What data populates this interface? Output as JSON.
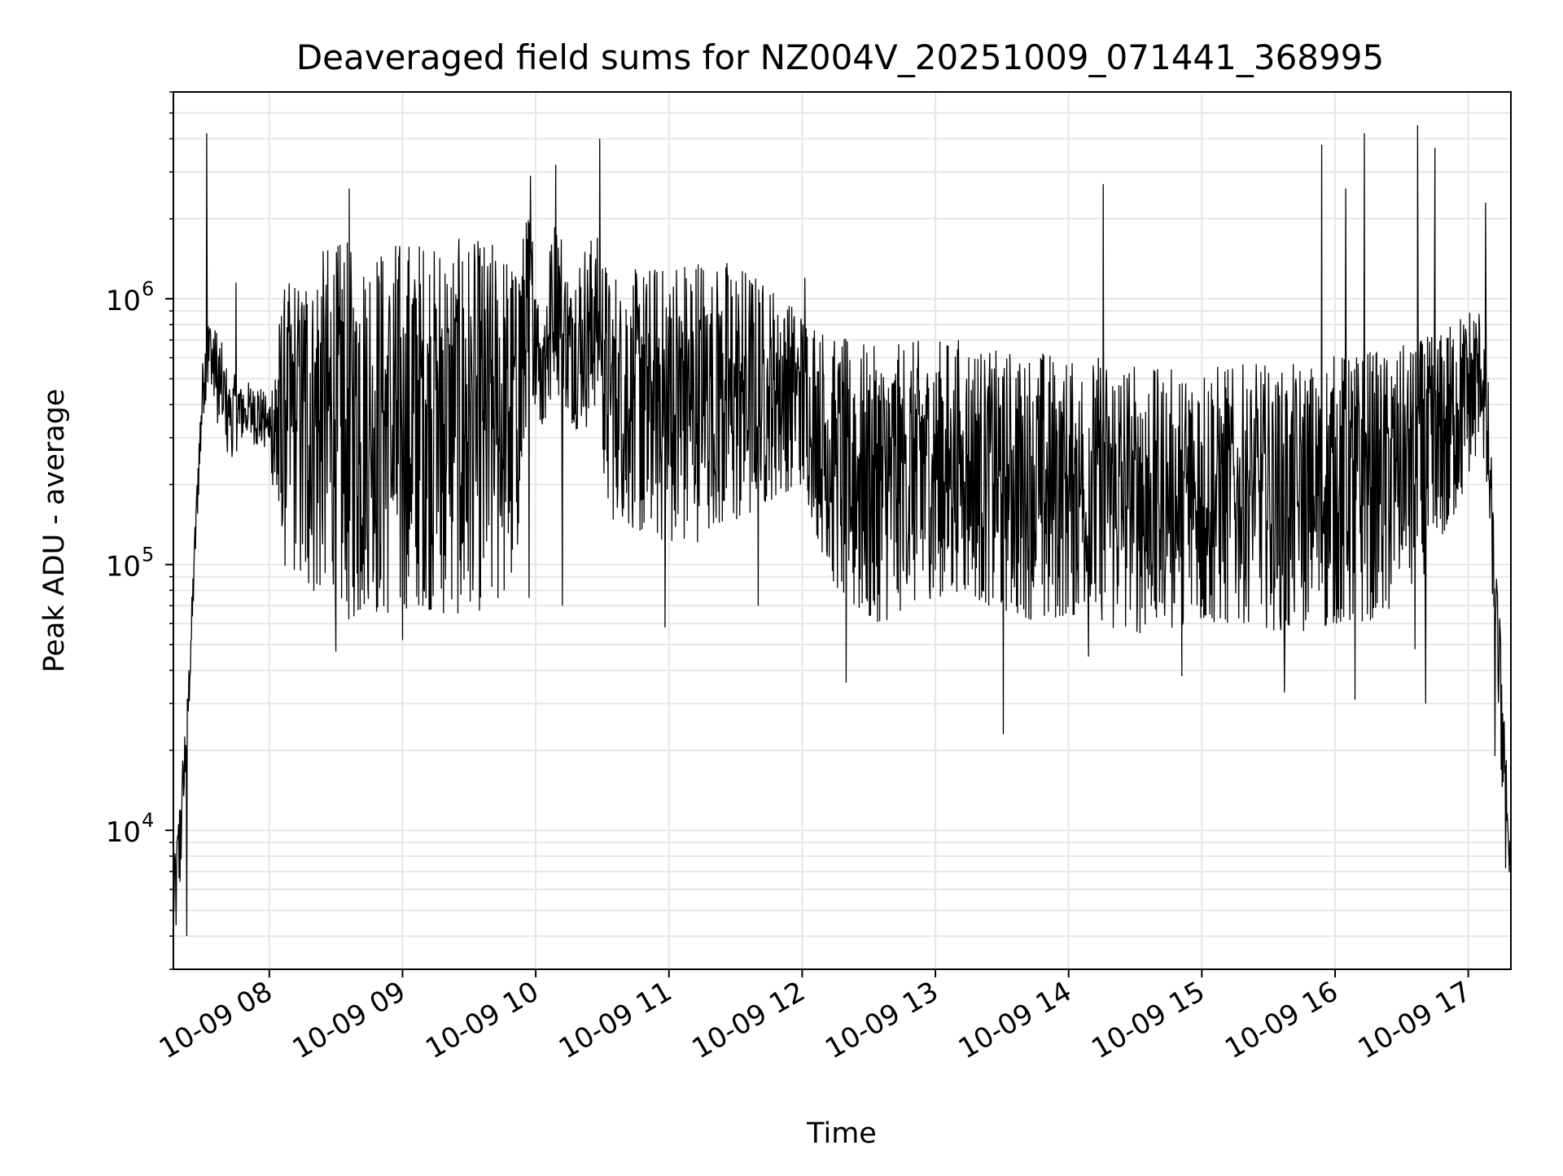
{
  "chart_data": {
    "type": "line",
    "title": "Deaveraged field sums for NZ004V_20251009_071441_368995",
    "xlabel": "Time",
    "ylabel": "Peak ADU - average",
    "yscale": "log",
    "xlim": [
      7.28,
      17.32
    ],
    "ylim": [
      3000,
      6000000
    ],
    "grid": true,
    "x_ticks": [
      8,
      9,
      10,
      11,
      12,
      13,
      14,
      15,
      16,
      17
    ],
    "x_tick_labels": [
      "10-09 08",
      "10-09 09",
      "10-09 10",
      "10-09 11",
      "10-09 12",
      "10-09 13",
      "10-09 14",
      "10-09 15",
      "10-09 16",
      "10-09 17"
    ],
    "y_major_ticks": [
      10000,
      100000,
      1000000
    ],
    "y_tick_labels": [
      {
        "base": "10",
        "exp": "4"
      },
      {
        "base": "10",
        "exp": "5"
      },
      {
        "base": "10",
        "exp": "6"
      }
    ],
    "line_color": "#000000",
    "grid_color": "#e6e6e6",
    "series": [
      {
        "name": "Peak ADU - average",
        "x_unit": "hours",
        "upper_envelope": [
          [
            7.28,
            7000
          ],
          [
            7.33,
            14000
          ],
          [
            7.4,
            45000
          ],
          [
            7.45,
            180000
          ],
          [
            7.5,
            600000
          ],
          [
            7.55,
            900000
          ],
          [
            7.62,
            750000
          ],
          [
            7.7,
            550000
          ],
          [
            7.8,
            480000
          ],
          [
            7.9,
            500000
          ],
          [
            8.0,
            420000
          ],
          [
            8.1,
            1100000
          ],
          [
            8.3,
            1500000
          ],
          [
            8.5,
            1650000
          ],
          [
            8.7,
            1650000
          ],
          [
            8.9,
            1700000
          ],
          [
            9.1,
            1700000
          ],
          [
            9.3,
            1700000
          ],
          [
            9.5,
            1700000
          ],
          [
            9.7,
            1650000
          ],
          [
            9.85,
            1400000
          ],
          [
            9.95,
            2200000
          ],
          [
            10.05,
            1000000
          ],
          [
            10.15,
            2500000
          ],
          [
            10.25,
            1200000
          ],
          [
            10.35,
            1600000
          ],
          [
            10.45,
            1800000
          ],
          [
            10.55,
            1300000
          ],
          [
            10.8,
            1300000
          ],
          [
            11.0,
            1450000
          ],
          [
            11.2,
            1500000
          ],
          [
            11.4,
            1450000
          ],
          [
            11.6,
            1300000
          ],
          [
            11.8,
            1100000
          ],
          [
            12.0,
            950000
          ],
          [
            12.2,
            750000
          ],
          [
            12.4,
            700000
          ],
          [
            12.6,
            650000
          ],
          [
            12.8,
            700000
          ],
          [
            13.0,
            700000
          ],
          [
            13.2,
            720000
          ],
          [
            13.4,
            650000
          ],
          [
            13.6,
            650000
          ],
          [
            13.8,
            650000
          ],
          [
            14.0,
            600000
          ],
          [
            14.2,
            620000
          ],
          [
            14.4,
            600000
          ],
          [
            14.6,
            550000
          ],
          [
            14.8,
            550000
          ],
          [
            15.0,
            580000
          ],
          [
            15.2,
            560000
          ],
          [
            15.4,
            580000
          ],
          [
            15.6,
            560000
          ],
          [
            15.8,
            580000
          ],
          [
            16.0,
            620000
          ],
          [
            16.2,
            650000
          ],
          [
            16.4,
            650000
          ],
          [
            16.6,
            700000
          ],
          [
            16.8,
            750000
          ],
          [
            17.0,
            950000
          ],
          [
            17.1,
            950000
          ],
          [
            17.15,
            500000
          ],
          [
            17.2,
            120000
          ],
          [
            17.25,
            50000
          ],
          [
            17.3,
            14000
          ],
          [
            17.32,
            8000
          ]
        ],
        "lower_envelope": [
          [
            7.28,
            4500
          ],
          [
            7.33,
            6000
          ],
          [
            7.4,
            30000
          ],
          [
            7.45,
            120000
          ],
          [
            7.5,
            350000
          ],
          [
            7.55,
            500000
          ],
          [
            7.62,
            300000
          ],
          [
            7.7,
            230000
          ],
          [
            7.8,
            300000
          ],
          [
            7.9,
            280000
          ],
          [
            8.0,
            250000
          ],
          [
            8.1,
            100000
          ],
          [
            8.3,
            80000
          ],
          [
            8.5,
            70000
          ],
          [
            8.6,
            60000
          ],
          [
            8.7,
            65000
          ],
          [
            8.9,
            65000
          ],
          [
            9.1,
            70000
          ],
          [
            9.3,
            65000
          ],
          [
            9.5,
            65000
          ],
          [
            9.7,
            70000
          ],
          [
            9.85,
            90000
          ],
          [
            9.95,
            500000
          ],
          [
            10.05,
            300000
          ],
          [
            10.15,
            450000
          ],
          [
            10.25,
            350000
          ],
          [
            10.35,
            300000
          ],
          [
            10.45,
            400000
          ],
          [
            10.55,
            150000
          ],
          [
            10.8,
            130000
          ],
          [
            11.0,
            120000
          ],
          [
            11.2,
            120000
          ],
          [
            11.4,
            140000
          ],
          [
            11.6,
            150000
          ],
          [
            11.8,
            180000
          ],
          [
            12.0,
            200000
          ],
          [
            12.2,
            90000
          ],
          [
            12.4,
            65000
          ],
          [
            12.6,
            60000
          ],
          [
            12.8,
            70000
          ],
          [
            13.0,
            75000
          ],
          [
            13.2,
            80000
          ],
          [
            13.4,
            70000
          ],
          [
            13.6,
            65000
          ],
          [
            13.8,
            60000
          ],
          [
            14.0,
            65000
          ],
          [
            14.2,
            60000
          ],
          [
            14.4,
            55000
          ],
          [
            14.6,
            55000
          ],
          [
            14.8,
            55000
          ],
          [
            15.0,
            60000
          ],
          [
            15.2,
            60000
          ],
          [
            15.4,
            60000
          ],
          [
            15.6,
            55000
          ],
          [
            15.8,
            55000
          ],
          [
            16.0,
            60000
          ],
          [
            16.2,
            60000
          ],
          [
            16.4,
            65000
          ],
          [
            16.6,
            80000
          ],
          [
            16.8,
            120000
          ],
          [
            17.0,
            200000
          ],
          [
            17.1,
            300000
          ],
          [
            17.15,
            150000
          ],
          [
            17.2,
            40000
          ],
          [
            17.25,
            15000
          ],
          [
            17.3,
            7500
          ],
          [
            17.32,
            6000
          ]
        ],
        "spikes": [
          [
            7.53,
            4200000
          ],
          [
            7.75,
            1150000
          ],
          [
            8.6,
            2600000
          ],
          [
            9.96,
            2900000
          ],
          [
            10.15,
            3200000
          ],
          [
            10.48,
            4000000
          ],
          [
            12.02,
            1200000
          ],
          [
            14.26,
            2700000
          ],
          [
            15.9,
            3800000
          ],
          [
            16.08,
            2600000
          ],
          [
            16.22,
            4200000
          ],
          [
            16.62,
            4500000
          ],
          [
            16.75,
            3700000
          ],
          [
            17.13,
            2300000
          ]
        ],
        "dips": [
          [
            7.3,
            4400
          ],
          [
            7.38,
            4000
          ],
          [
            8.5,
            47000
          ],
          [
            9.0,
            52000
          ],
          [
            9.95,
            75000
          ],
          [
            10.2,
            70000
          ],
          [
            10.97,
            58000
          ],
          [
            11.67,
            70000
          ],
          [
            12.33,
            36000
          ],
          [
            13.51,
            23000
          ],
          [
            14.15,
            45000
          ],
          [
            14.85,
            38000
          ],
          [
            15.62,
            33000
          ],
          [
            16.15,
            31000
          ],
          [
            16.6,
            48000
          ],
          [
            16.68,
            30000
          ],
          [
            17.2,
            19000
          ],
          [
            17.28,
            7200
          ]
        ]
      }
    ]
  }
}
